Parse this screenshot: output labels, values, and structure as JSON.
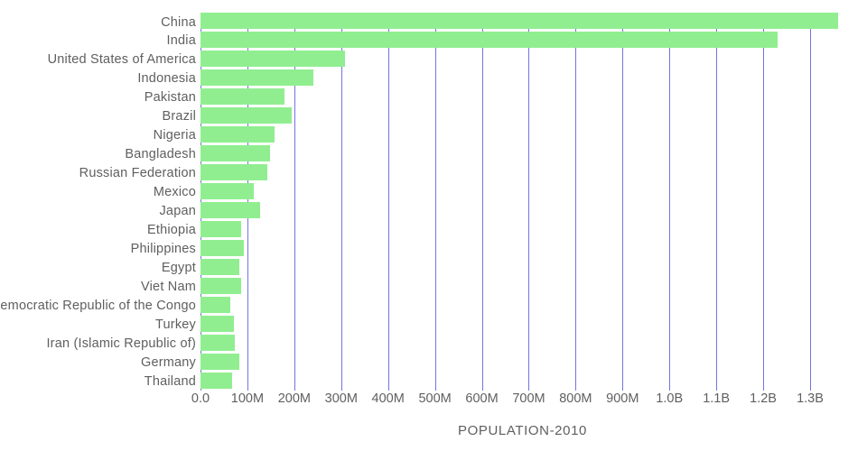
{
  "chart_data": {
    "type": "bar",
    "orientation": "horizontal",
    "title": "POPULATION-2010",
    "xlabel": "POPULATION-2010",
    "ylabel": "",
    "categories": [
      "China",
      "India",
      "United States of America",
      "Indonesia",
      "Pakistan",
      "Brazil",
      "Nigeria",
      "Bangladesh",
      "Russian Federation",
      "Mexico",
      "Japan",
      "Ethiopia",
      "Philippines",
      "Egypt",
      "Viet Nam",
      "Democratic Republic of the Congo",
      "Turkey",
      "Iran (Islamic Republic of)",
      "Germany",
      "Thailand"
    ],
    "values": [
      1360000000,
      1231000000,
      309000000,
      240000000,
      179000000,
      195000000,
      158000000,
      148000000,
      143000000,
      114000000,
      128000000,
      87000000,
      93000000,
      82000000,
      87000000,
      64000000,
      72000000,
      74000000,
      82000000,
      67000000
    ],
    "xlim": [
      0,
      1300000000
    ],
    "xticks": [
      "0.0",
      "100M",
      "200M",
      "300M",
      "400M",
      "500M",
      "600M",
      "700M",
      "800M",
      "900M",
      "1.0B",
      "1.1B",
      "1.2B",
      "1.3B"
    ],
    "grid": true,
    "legend": false,
    "bar_color": "#90ee90",
    "gridline_color": "#7474e0",
    "text_color": "#5f5f5f"
  }
}
